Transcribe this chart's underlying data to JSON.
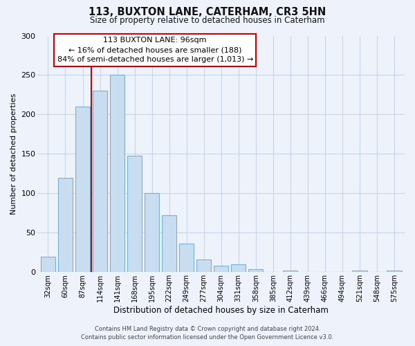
{
  "title": "113, BUXTON LANE, CATERHAM, CR3 5HN",
  "subtitle": "Size of property relative to detached houses in Caterham",
  "xlabel": "Distribution of detached houses by size in Caterham",
  "ylabel": "Number of detached properties",
  "bar_labels": [
    "32sqm",
    "60sqm",
    "87sqm",
    "114sqm",
    "141sqm",
    "168sqm",
    "195sqm",
    "222sqm",
    "249sqm",
    "277sqm",
    "304sqm",
    "331sqm",
    "358sqm",
    "385sqm",
    "412sqm",
    "439sqm",
    "466sqm",
    "494sqm",
    "521sqm",
    "548sqm",
    "575sqm"
  ],
  "bar_heights": [
    20,
    120,
    210,
    230,
    250,
    148,
    100,
    72,
    36,
    16,
    8,
    10,
    4,
    0,
    2,
    0,
    0,
    0,
    2,
    0,
    2
  ],
  "bar_color": "#c8ddf0",
  "bar_edge_color": "#7bafd4",
  "property_label": "113 BUXTON LANE: 96sqm",
  "annotation_line1": "← 16% of detached houses are smaller (188)",
  "annotation_line2": "84% of semi-detached houses are larger (1,013) →",
  "vline_color": "#cc0000",
  "vline_x": 2.5,
  "annotation_box_color": "#ffffff",
  "annotation_box_edge": "#cc0000",
  "ylim": [
    0,
    300
  ],
  "yticks": [
    0,
    50,
    100,
    150,
    200,
    250,
    300
  ],
  "footer_line1": "Contains HM Land Registry data © Crown copyright and database right 2024.",
  "footer_line2": "Contains public sector information licensed under the Open Government Licence v3.0.",
  "bg_color": "#eef2fb",
  "plot_bg_color": "#eef2fb",
  "grid_color": "#c8d4e8"
}
